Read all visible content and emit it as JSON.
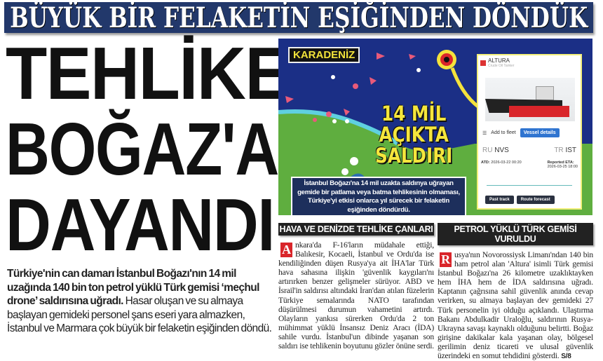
{
  "banner": {
    "title": "BÜYÜK BİR FELAKETİN EŞİĞİNDEN DÖNDÜK",
    "color": "#22386b"
  },
  "headline": {
    "line1": "TEHLİKE",
    "line2": "BOĞAZ'A",
    "line3": "DAYANDI"
  },
  "lede": {
    "bold": "Türkiye'nin can damarı İstanbul Boğazı'nın 14 mil uzağında 140 bin ton petrol yüklü Türk gemisi ‘meçhul drone’ saldırısına uğradı.",
    "regular": " Hasar oluşan ve su almaya başlayan gemideki personel şans eseri yara almazken, İstanbul ve Marmara çok büyük bir felaketin eşiğinden döndü."
  },
  "map": {
    "region_label": "KARADENİZ",
    "big_text": [
      "14 MİL",
      "AÇIKTA",
      "SALDIRI"
    ],
    "caption": "İstanbul Boğazı'na 14 mil uzakta saldırıya uğrayan gemide bir patlama veya batma tehlikesinin olmaması, Türkiye'yi etkisi onlarca yıl sürecek bir felaketin eşiğinden döndürdü.",
    "vessel": {
      "name": "ALTURA",
      "type": "Crude Oil Tanker",
      "add_to_fleet": "Add to fleet",
      "vessel_details": "Vessel details",
      "from_country": "RU",
      "from_port": "NVS",
      "to_country": "TR",
      "to_port": "IST",
      "atd_label": "ATD:",
      "atd": "2026-03-22 00:20",
      "eta_label": "Reported ETA:",
      "eta": "2026-03-25 18:00",
      "past_track": "Past track",
      "route_forecast": "Route forecast"
    }
  },
  "articles": [
    {
      "title": "HAVA VE DENİZDE TEHLİKE ÇANLARI",
      "drop": "A",
      "body": "nkara'da F-16'ların müdahale ettiği, Balıkesir, Kocaeli, İstanbul ve Ordu'da ise kendiliğinden düşen Rusya'ya ait İHA'lar Türk hava sahasına ilişkin 'güvenlik kaygıları'nı artırırken benzer gelişmeler sürüyor. ABD ve İsrail'in saldırısı altındaki İran'dan atılan füzelerin Türkiye semalarında NATO tarafından düşürülmesi durumun vahametini artırdı. Olayların yankısı sürerken Ordu'da 2 ton mühimmat yüklü İnsansız Deniz Aracı (İDA) sahile vurdu. İstanbul'un dibinde yaşanan son saldırı ise tehlikenin boyutunu gözler önüne serdi."
    },
    {
      "title": "PETROL YÜKLÜ TÜRK GEMİSİ VURULDU",
      "drop": "R",
      "body": "usya'nın Novorossiysk Limanı'ndan 140 bin ham petrol alan 'Altura' isimli Türk gemisi İstanbul Boğazı'na 26 kilometre uzaklıktayken hem İHA hem de İDA saldırısına uğradı. Kaptanın çağrısına sahil güvenlik anında cevap verirken, su almaya başlayan dev gemideki 27 Türk personelin iyi olduğu açıklandı. Ulaştırma Bakanı Abdulkadir Uraloğlu, saldırının Rusya-Ukrayna savaşı kaynaklı olduğunu belirtti. Boğaz girişine dakikalar kala yaşanan olay, bölgesel gerilimin deniz ticareti ve ulusal güvenlik üzerindeki en somut tehdidini gösterdi.",
      "page_ref": "S/8"
    }
  ]
}
